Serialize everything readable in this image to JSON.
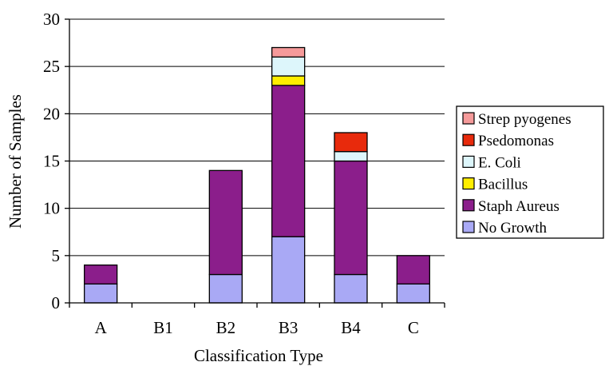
{
  "chart_data": {
    "type": "bar",
    "stacked": true,
    "title": "",
    "xlabel": "Classification Type",
    "ylabel": "Number of Samples",
    "ylim": [
      0,
      30
    ],
    "yticks": [
      0,
      5,
      10,
      15,
      20,
      25,
      30
    ],
    "grid": true,
    "legend_position": "right",
    "categories": [
      "A",
      "B1",
      "B2",
      "B3",
      "B4",
      "C"
    ],
    "series": [
      {
        "name": "No Growth",
        "color": "#a9a9f5",
        "values": [
          2,
          0,
          3,
          7,
          3,
          2
        ]
      },
      {
        "name": "Staph Aureus",
        "color": "#8b1e8b",
        "values": [
          2,
          0,
          11,
          16,
          12,
          3
        ]
      },
      {
        "name": "Bacillus",
        "color": "#ffee00",
        "values": [
          0,
          0,
          0,
          1,
          0,
          0
        ]
      },
      {
        "name": "E. Coli",
        "color": "#ddf6fb",
        "values": [
          0,
          0,
          0,
          2,
          1,
          0
        ]
      },
      {
        "name": "Psedomonas",
        "color": "#e82a0c",
        "values": [
          0,
          0,
          0,
          0,
          2,
          0
        ]
      },
      {
        "name": "Strep pyogenes",
        "color": "#f59a9a",
        "values": [
          0,
          0,
          0,
          1,
          0,
          0
        ]
      }
    ]
  }
}
